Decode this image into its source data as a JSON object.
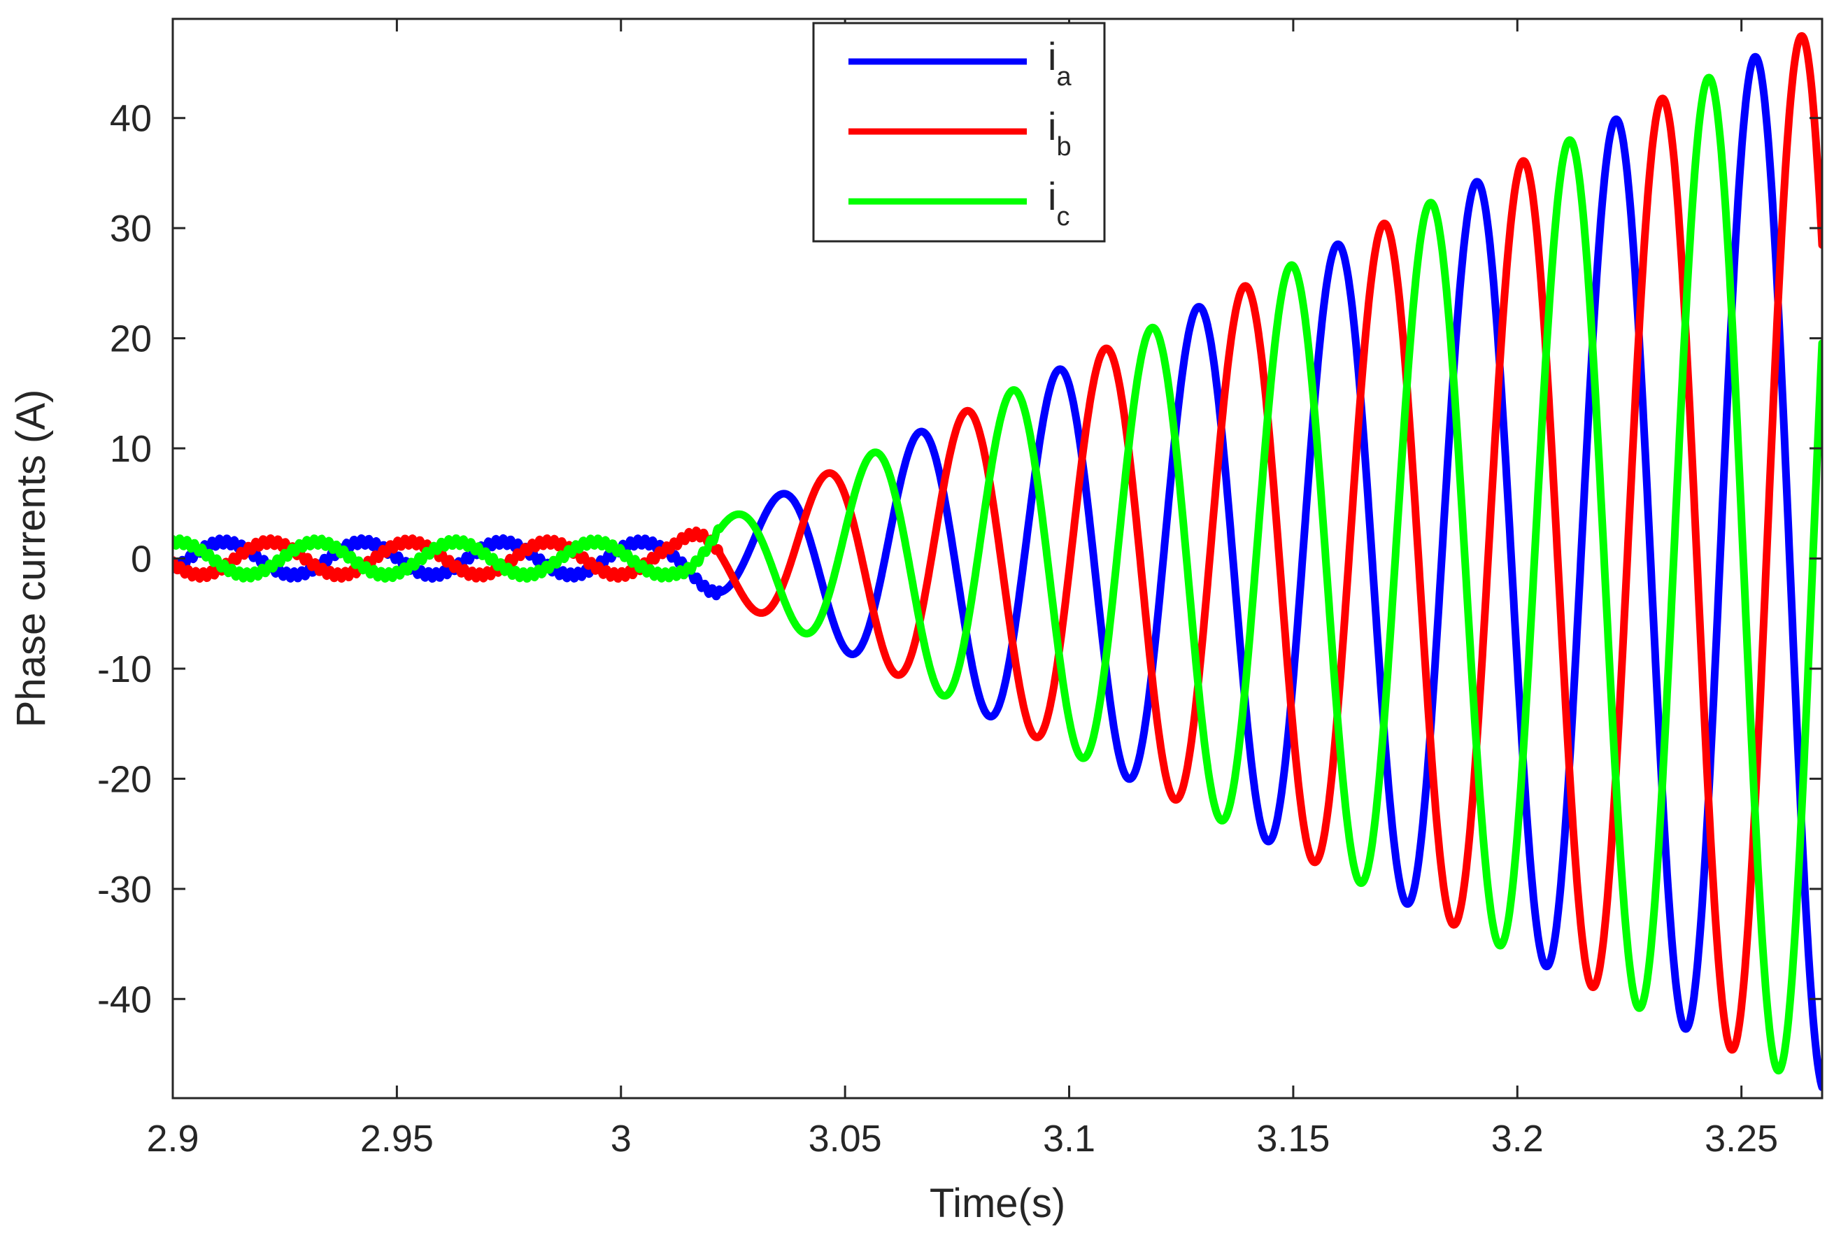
{
  "chart_data": {
    "type": "line",
    "xlabel": "Time(s)",
    "ylabel": "Phase currents (A)",
    "xlim": [
      2.9,
      3.268
    ],
    "ylim": [
      -49,
      49
    ],
    "x_ticks": [
      {
        "value": 2.9,
        "label": "2.9"
      },
      {
        "value": 2.95,
        "label": "2.95"
      },
      {
        "value": 3.0,
        "label": "3"
      },
      {
        "value": 3.05,
        "label": "3.05"
      },
      {
        "value": 3.1,
        "label": "3.1"
      },
      {
        "value": 3.15,
        "label": "3.15"
      },
      {
        "value": 3.2,
        "label": "3.2"
      },
      {
        "value": 3.25,
        "label": "3.25"
      }
    ],
    "y_ticks": [
      {
        "value": 40,
        "label": "40"
      },
      {
        "value": 30,
        "label": "30"
      },
      {
        "value": 20,
        "label": "20"
      },
      {
        "value": 10,
        "label": "10"
      },
      {
        "value": 0,
        "label": "0"
      },
      {
        "value": -10,
        "label": "-10"
      },
      {
        "value": -20,
        "label": "-20"
      },
      {
        "value": -30,
        "label": "-30"
      },
      {
        "value": -40,
        "label": "-40"
      }
    ],
    "grid": false,
    "legend_position": "top-center",
    "series": [
      {
        "name": "i",
        "subscript": "a",
        "color": "#0000ff",
        "phase_deg": 0
      },
      {
        "name": "i",
        "subscript": "b",
        "color": "#ff0000",
        "phase_deg": -120
      },
      {
        "name": "i",
        "subscript": "c",
        "color": "#00ff00",
        "phase_deg": 120
      }
    ],
    "waveform": {
      "frequency_hz": 32.2,
      "steady_amplitude": 1.5,
      "growth_start_time": 3.012,
      "growth_rate_a_per_s": 180,
      "amplitude_at_3.25": 45,
      "ripple_amplitude": 0.35
    }
  }
}
